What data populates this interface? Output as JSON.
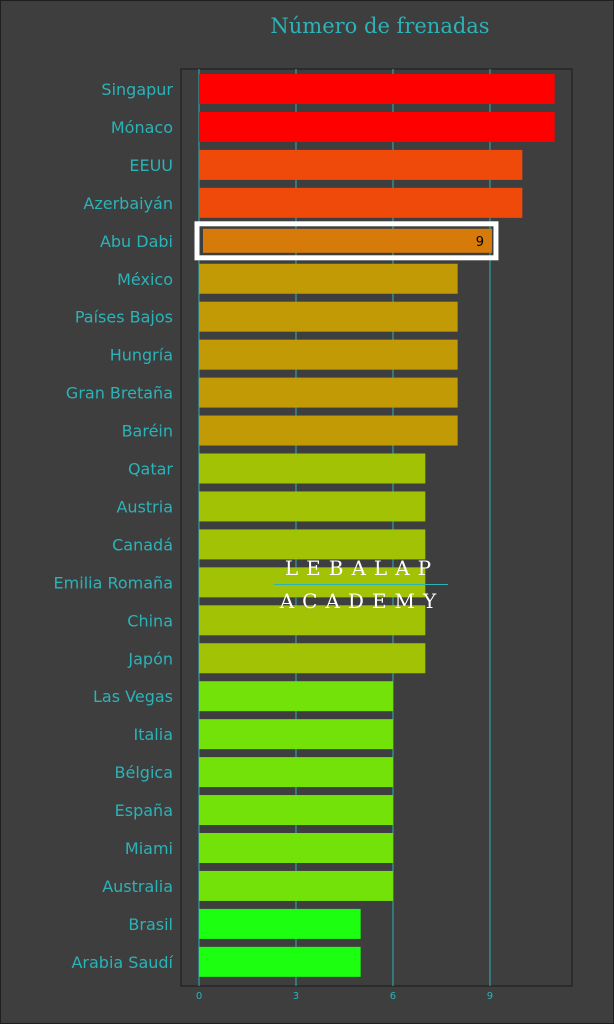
{
  "chart_data": {
    "type": "bar",
    "orientation": "horizontal",
    "title": "Número de frenadas",
    "categories": [
      "Singapur",
      "Mónaco",
      "EEUU",
      "Azerbaiyán",
      "Abu Dabi",
      "México",
      "Países Bajos",
      "Hungría",
      "Gran Bretaña",
      "Baréin",
      "Qatar",
      "Austria",
      "Canadá",
      "Emilia Romaña",
      "China",
      "Japón",
      "Las Vegas",
      "Italia",
      "Bélgica",
      "España",
      "Miami",
      "Australia",
      "Brasil",
      "Arabia Saudí"
    ],
    "values": [
      11,
      11,
      10,
      10,
      9,
      8,
      8,
      8,
      8,
      8,
      7,
      7,
      7,
      7,
      7,
      7,
      6,
      6,
      6,
      6,
      6,
      6,
      5,
      5
    ],
    "colors": [
      "#ff0000",
      "#ff0000",
      "#ef4a0a",
      "#ef4a0a",
      "#d67a0a",
      "#c29a06",
      "#c29a06",
      "#c29a06",
      "#c29a06",
      "#c29a06",
      "#a2c205",
      "#a2c205",
      "#a2c205",
      "#a2c205",
      "#a2c205",
      "#a2c205",
      "#73e208",
      "#73e208",
      "#73e208",
      "#73e208",
      "#73e208",
      "#73e208",
      "#1cff10",
      "#1cff10"
    ],
    "highlighted_category": "Abu Dabi",
    "data_labels": [
      {
        "category": "Abu Dabi",
        "text": "9"
      }
    ],
    "xlim": [
      0,
      11.5
    ],
    "xticks": [
      0,
      3,
      6,
      9
    ],
    "grid": true,
    "accent_color": "#2bb3b8"
  },
  "watermark": {
    "line1": "LEBALAP",
    "line2": "ACADEMY"
  }
}
